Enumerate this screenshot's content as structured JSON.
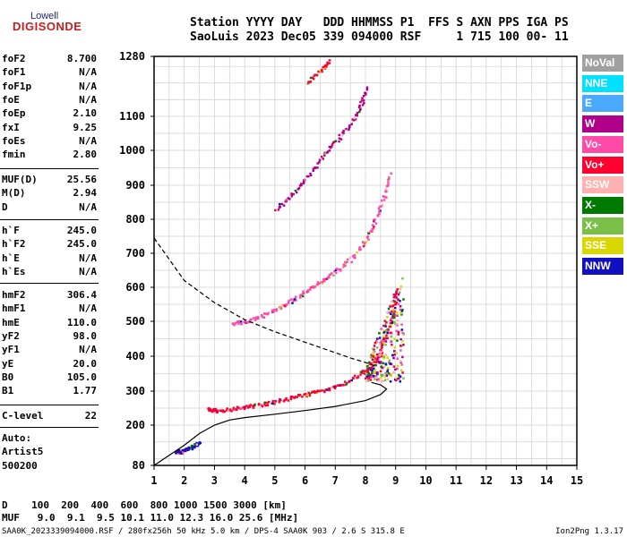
{
  "logo": {
    "top": "Lowell",
    "main": "DIGISONDE"
  },
  "header": {
    "line1": "Station YYYY DAY   DDD HHMMSS P1  FFS S AXN PPS IGA PS",
    "line2": "SaoLuis 2023 Dec05 339 094000 RSF     1 715 100 00- 11"
  },
  "params_group1": [
    {
      "k": "foF2",
      "v": "8.700"
    },
    {
      "k": "foF1",
      "v": "N/A"
    },
    {
      "k": "foF1p",
      "v": "N/A"
    },
    {
      "k": "foE",
      "v": "N/A"
    },
    {
      "k": "foEp",
      "v": "2.10"
    },
    {
      "k": "fxI",
      "v": "9.25"
    },
    {
      "k": "foEs",
      "v": "N/A"
    },
    {
      "k": "fmin",
      "v": "2.80"
    }
  ],
  "params_group2": [
    {
      "k": "MUF(D)",
      "v": "25.56"
    },
    {
      "k": "M(D)",
      "v": "2.94"
    },
    {
      "k": "D",
      "v": "N/A"
    }
  ],
  "params_group3": [
    {
      "k": "h`F",
      "v": "245.0"
    },
    {
      "k": "h`F2",
      "v": "245.0"
    },
    {
      "k": "h`E",
      "v": "N/A"
    },
    {
      "k": "h`Es",
      "v": "N/A"
    }
  ],
  "params_group4": [
    {
      "k": "hmF2",
      "v": "306.4"
    },
    {
      "k": "hmF1",
      "v": "N/A"
    },
    {
      "k": "hmE",
      "v": "110.0"
    },
    {
      "k": "yF2",
      "v": "98.0"
    },
    {
      "k": "yF1",
      "v": "N/A"
    },
    {
      "k": "yE",
      "v": "20.0"
    },
    {
      "k": "B0",
      "v": "105.0"
    },
    {
      "k": "B1",
      "v": "1.77"
    }
  ],
  "params_group5": [
    {
      "k": "C-level",
      "v": "22"
    }
  ],
  "auto_lines": [
    "Auto:",
    "Artist5",
    "500200"
  ],
  "legend": [
    {
      "label": "NoVal",
      "color": "#a0a0a0"
    },
    {
      "label": "NNE",
      "color": "#00e0ff"
    },
    {
      "label": "E",
      "color": "#4aa8ff"
    },
    {
      "label": "W",
      "color": "#b0008a"
    },
    {
      "label": "Vo-",
      "color": "#ff4aa8"
    },
    {
      "label": "Vo+",
      "color": "#ff0030"
    },
    {
      "label": "SSW",
      "color": "#ffb0b0"
    },
    {
      "label": "X-",
      "color": "#007a00"
    },
    {
      "label": "X+",
      "color": "#7ac048"
    },
    {
      "label": "SSE",
      "color": "#d8d800"
    },
    {
      "label": "NNW",
      "color": "#1010c0"
    }
  ],
  "chart_data": {
    "type": "scatter",
    "xlabel": "",
    "ylabel": "",
    "x_ticks": [
      "1",
      "2",
      "3",
      "4",
      "5",
      "6",
      "7",
      "8",
      "9",
      "10",
      "11",
      "12",
      "13",
      "14",
      "15"
    ],
    "y_ticks": [
      "80",
      "200",
      "300",
      "400",
      "500",
      "600",
      "700",
      "800",
      "900",
      "1000",
      "1100",
      "1280"
    ],
    "xlim": [
      1,
      15
    ],
    "ylim": [
      80,
      1280
    ],
    "grid": true,
    "legend_position": "right",
    "echo_traces": [
      {
        "name": "E trace",
        "color": "#1010c0",
        "points": [
          [
            1.7,
            120
          ],
          [
            1.9,
            125
          ],
          [
            2.1,
            132
          ],
          [
            2.3,
            140
          ],
          [
            2.5,
            148
          ]
        ]
      },
      {
        "name": "F2 trace",
        "color": "#ff0030",
        "points": [
          [
            2.8,
            250
          ],
          [
            3.0,
            245
          ],
          [
            3.5,
            248
          ],
          [
            4.0,
            255
          ],
          [
            4.5,
            262
          ],
          [
            5.0,
            272
          ],
          [
            5.5,
            282
          ],
          [
            6.0,
            292
          ],
          [
            6.5,
            302
          ],
          [
            7.0,
            315
          ],
          [
            7.5,
            335
          ],
          [
            8.0,
            360
          ],
          [
            8.3,
            385
          ],
          [
            8.5,
            420
          ],
          [
            8.7,
            470
          ],
          [
            8.9,
            540
          ],
          [
            9.0,
            600
          ]
        ]
      },
      {
        "name": "F2 2-hop",
        "color": "#ff4aa8",
        "points": [
          [
            3.6,
            495
          ],
          [
            4.0,
            502
          ],
          [
            4.5,
            515
          ],
          [
            5.0,
            535
          ],
          [
            5.5,
            560
          ],
          [
            6.0,
            590
          ],
          [
            6.5,
            620
          ],
          [
            7.0,
            650
          ],
          [
            7.5,
            685
          ],
          [
            8.0,
            740
          ],
          [
            8.3,
            800
          ],
          [
            8.6,
            870
          ],
          [
            8.8,
            940
          ]
        ]
      },
      {
        "name": "F2 3-hop",
        "color": "#b0008a",
        "points": [
          [
            5.0,
            830
          ],
          [
            5.5,
            870
          ],
          [
            6.0,
            920
          ],
          [
            6.5,
            980
          ],
          [
            7.0,
            1030
          ],
          [
            7.5,
            1080
          ],
          [
            7.8,
            1130
          ],
          [
            8.0,
            1190
          ]
        ]
      },
      {
        "name": "F2 4-hop",
        "color": "#ff0030",
        "points": [
          [
            6.0,
            1200
          ],
          [
            6.5,
            1240
          ],
          [
            6.8,
            1270
          ]
        ]
      }
    ],
    "profile_solid": [
      [
        1,
        80
      ],
      [
        2,
        140
      ],
      [
        2.5,
        175
      ],
      [
        3,
        200
      ],
      [
        3.5,
        215
      ],
      [
        4,
        222
      ],
      [
        5,
        232
      ],
      [
        6,
        243
      ],
      [
        7,
        255
      ],
      [
        8,
        272
      ],
      [
        8.5,
        290
      ],
      [
        8.7,
        306
      ],
      [
        8.5,
        318
      ],
      [
        8.2,
        325
      ]
    ],
    "profile_dashed": [
      [
        1,
        745
      ],
      [
        2,
        620
      ],
      [
        3,
        555
      ],
      [
        4,
        505
      ],
      [
        5,
        470
      ],
      [
        6,
        440
      ],
      [
        7,
        410
      ],
      [
        7.5,
        395
      ],
      [
        8,
        382
      ],
      [
        8.3,
        372
      ]
    ]
  },
  "bottom": {
    "line1": "D    100  200  400  600  800 1000 1500 3000 [km]",
    "line2": "MUF   9.0  9.1  9.5 10.1 11.0 12.3 16.0 25.6 [MHz]"
  },
  "footer": {
    "left": "SAA0K_2023339094000.RSF / 280fx256h 50 kHz 5.0 km / DPS-4 SAA0K 903 / 2.6 S 315.8 E",
    "right": "Ion2Png 1.3.17"
  }
}
